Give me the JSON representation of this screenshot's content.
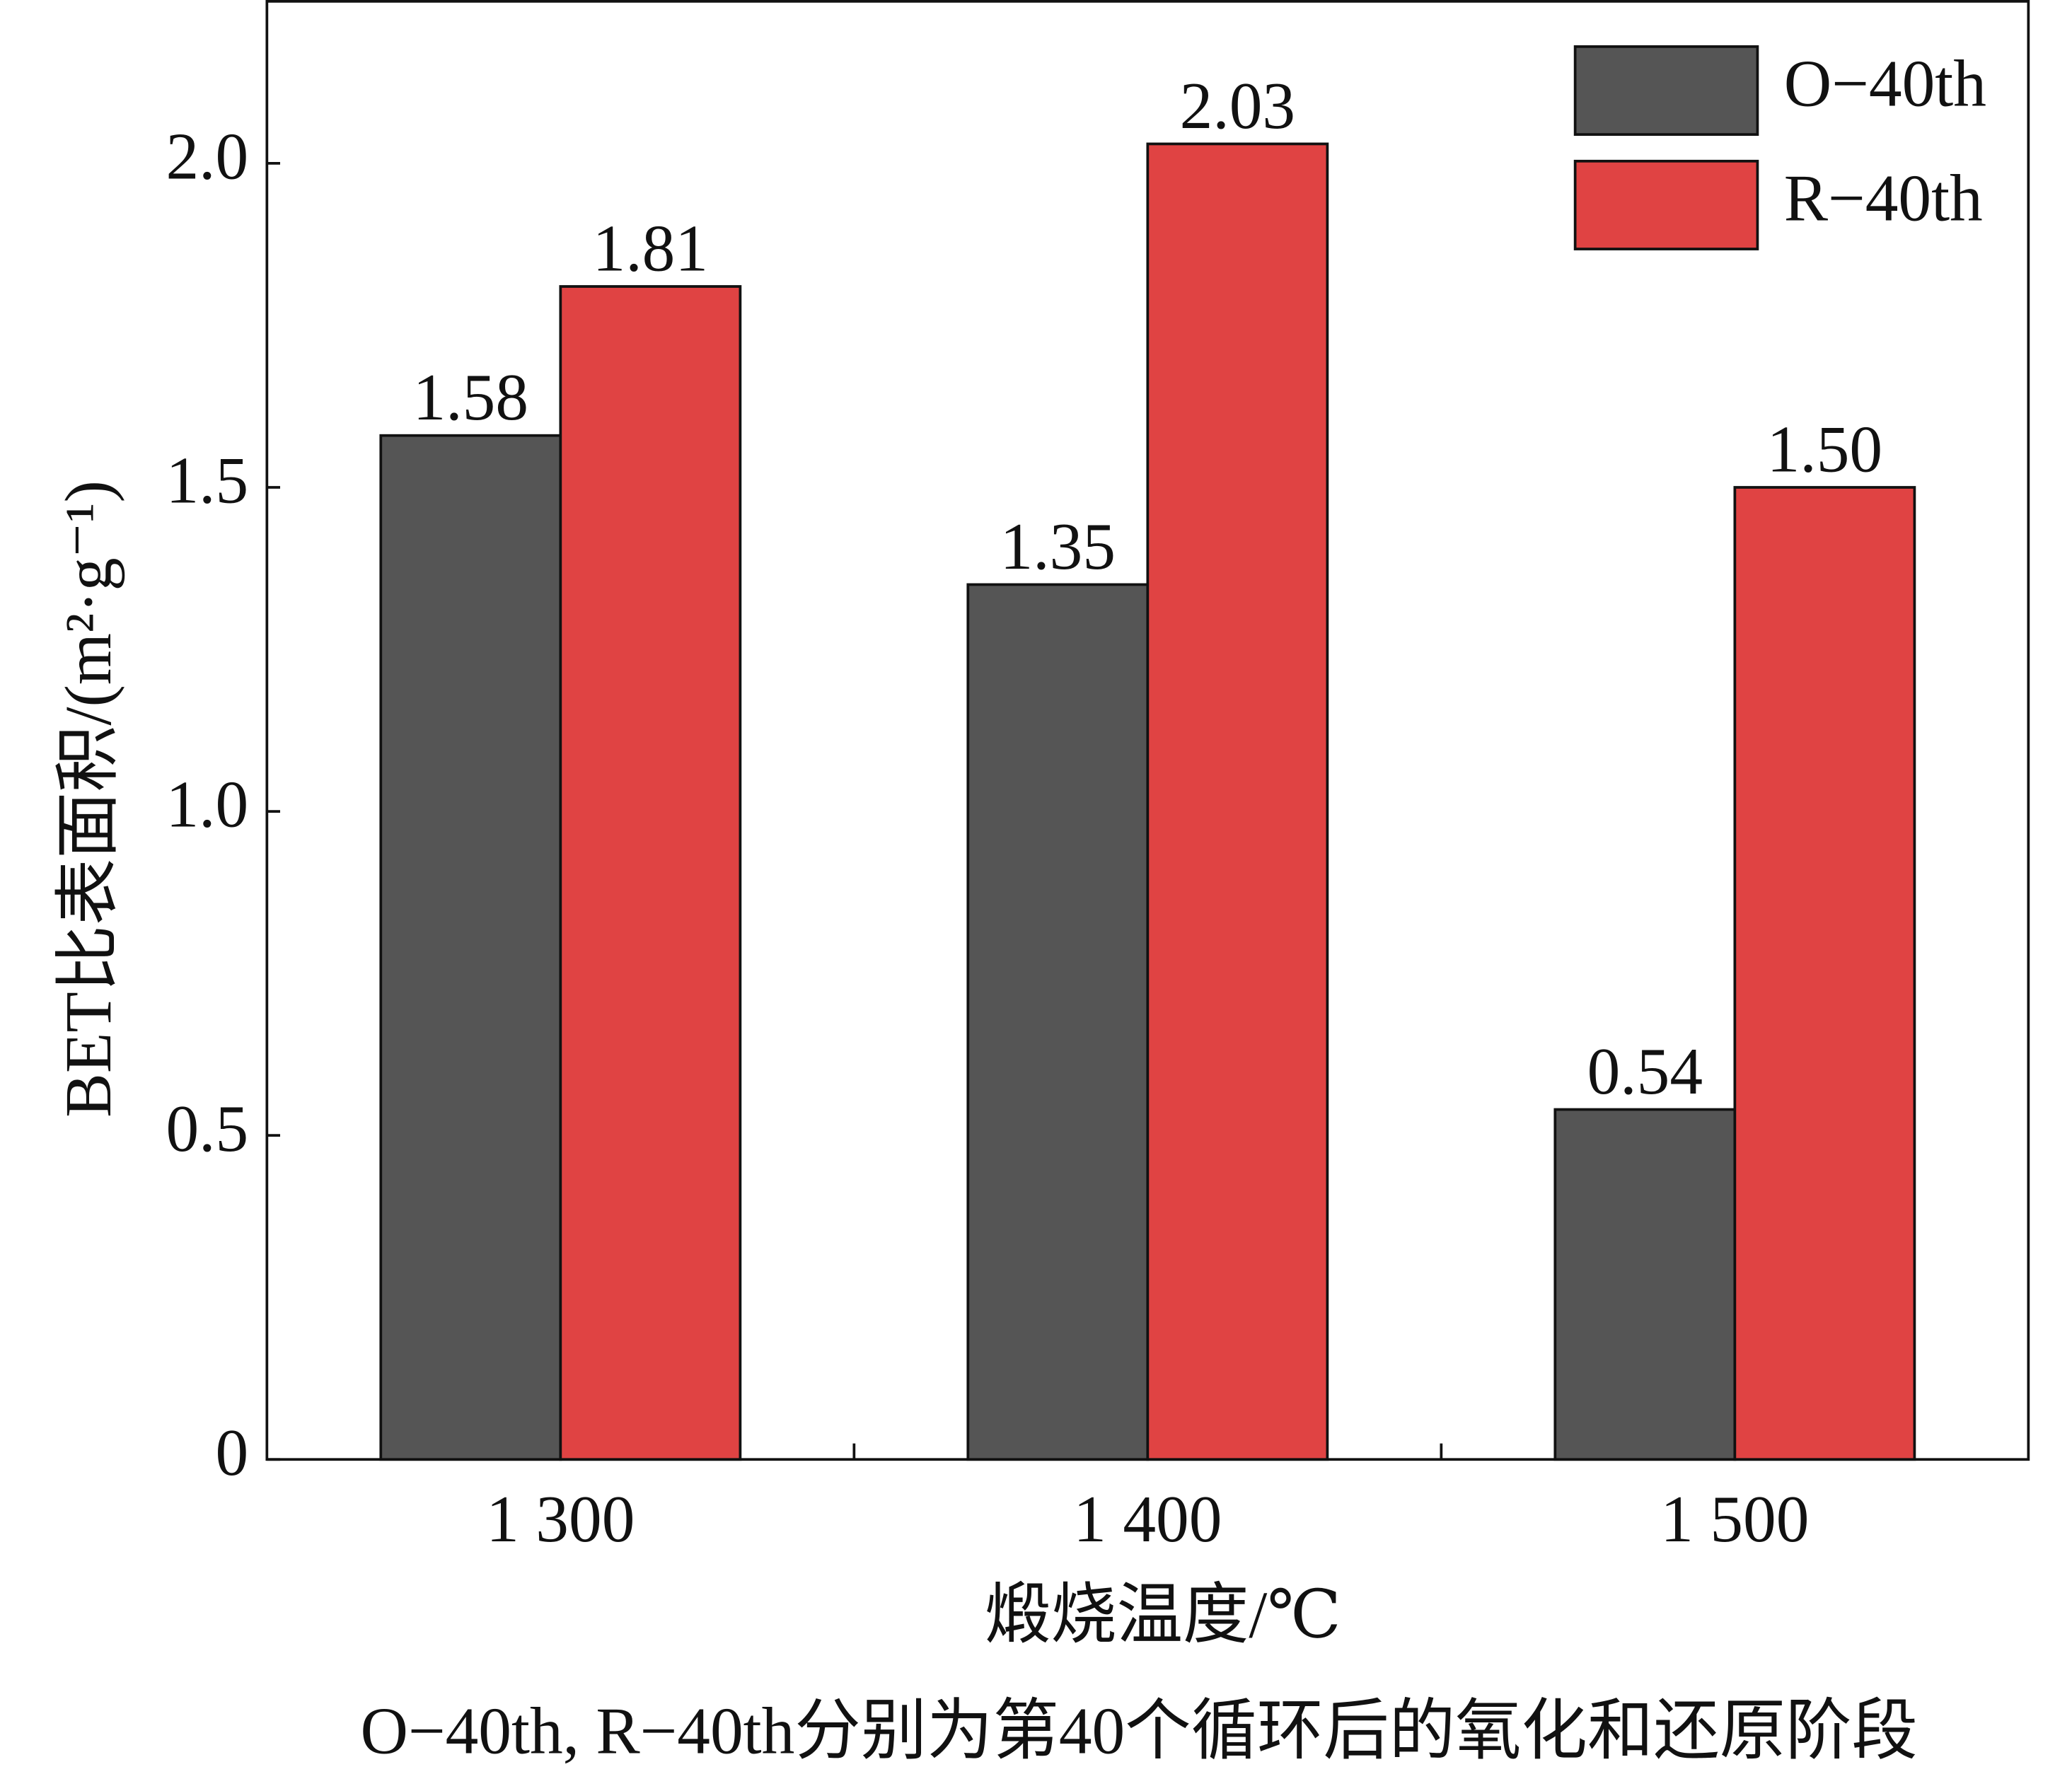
{
  "chart_data": {
    "type": "bar",
    "y_label": "BET比表面积/(m²·g⁻¹)",
    "x_label": "煅烧温度/℃",
    "note": "O−40th, R−40th分别为第40个循环后的氧化和还原阶段",
    "categories": [
      "1 300",
      "1 400",
      "1 500"
    ],
    "series": [
      {
        "name": "O−40th",
        "color": "#555555",
        "values": [
          1.58,
          1.35,
          0.54
        ]
      },
      {
        "name": "R−40th",
        "color": "#e04343",
        "values": [
          1.81,
          2.03,
          1.5
        ],
        "value_labels": [
          "1.81",
          "2.03",
          "1.50"
        ]
      }
    ],
    "ylim": [
      0,
      2.25
    ],
    "yticks": [
      0,
      0.5,
      {
        "value": 1,
        "label": "1.0"
      },
      1.5,
      {
        "value": 2,
        "label": "2.0"
      }
    ],
    "legend": "upper right"
  }
}
